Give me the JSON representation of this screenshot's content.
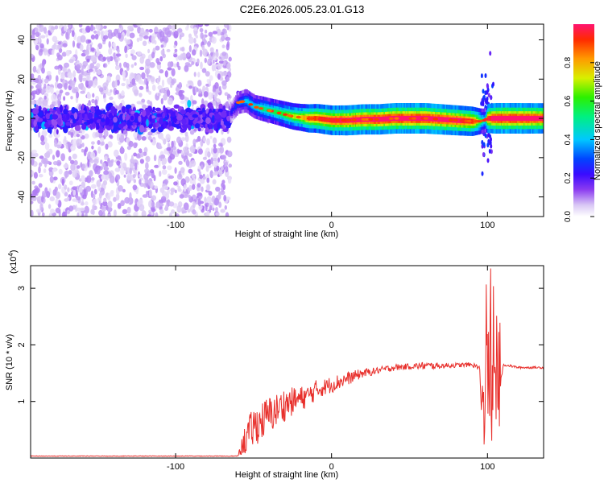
{
  "figure_title": "C2E6.2026.005.23.01.G13",
  "chart_data": [
    {
      "type": "heatmap",
      "name": "spectrogram",
      "xlabel": "Height of straight line (km)",
      "ylabel": "Frequency (Hz)",
      "xlim": [
        -193,
        136
      ],
      "ylim": [
        -50,
        48
      ],
      "xticks": [
        -100,
        0,
        100
      ],
      "yticks": [
        -40,
        -20,
        0,
        20,
        40
      ],
      "colorbar": {
        "label": "Normalized spectral amplitude",
        "range": [
          0,
          1
        ],
        "ticks": [
          "0.0",
          "0.2",
          "0.4",
          "0.6",
          "0.8"
        ],
        "tick_values": [
          0.0,
          0.2,
          0.4,
          0.6,
          0.8
        ]
      },
      "ridge": {
        "x": [
          -65,
          -60,
          -55,
          -50,
          -45,
          -40,
          -35,
          -30,
          -25,
          -20,
          -15,
          -10,
          -5,
          0,
          10,
          20,
          30,
          40,
          50,
          60,
          70,
          80,
          90,
          95,
          98,
          100,
          105,
          110,
          120,
          136
        ],
        "freq": [
          3,
          8,
          9,
          6,
          5,
          4,
          3,
          2,
          1,
          0.5,
          0,
          0,
          -0.5,
          -1,
          -1,
          -0.5,
          -0.5,
          0,
          0,
          0,
          -0.5,
          -1,
          -1.5,
          -1.5,
          -1,
          0,
          0,
          0,
          0,
          0
        ],
        "amplitude": [
          0.2,
          0.3,
          0.4,
          0.4,
          0.5,
          0.5,
          0.55,
          0.6,
          0.65,
          0.7,
          0.8,
          0.85,
          0.9,
          0.92,
          0.95,
          0.97,
          0.98,
          1.0,
          1.0,
          1.0,
          0.98,
          0.95,
          0.9,
          0.6,
          0.4,
          0.9,
          1.0,
          1.0,
          1.0,
          0.97
        ]
      },
      "noise_region": {
        "x_range": [
          -193,
          -65
        ],
        "freq_range": [
          -50,
          48
        ]
      }
    },
    {
      "type": "line",
      "name": "snr",
      "xlabel": "Height of straight line (km)",
      "ylabel": "SNR (10 * v/v)",
      "y_multiplier": "(x10",
      "y_multiplier_exp": "4",
      "xlim": [
        -193,
        136
      ],
      "ylim": [
        0,
        3.4
      ],
      "xticks": [
        -100,
        0,
        100
      ],
      "yticks": [
        1,
        2,
        3
      ],
      "series": [
        {
          "name": "SNR",
          "color": "#e8302c",
          "x": [
            -193,
            -60,
            -55,
            -50,
            -45,
            -40,
            -35,
            -30,
            -25,
            -20,
            -15,
            -10,
            -5,
            0,
            5,
            10,
            15,
            20,
            25,
            30,
            40,
            50,
            60,
            70,
            80,
            90,
            95,
            96,
            98,
            100,
            101,
            102,
            103,
            104,
            105,
            106,
            108,
            110,
            120,
            136
          ],
          "values": [
            0.02,
            0.05,
            0.35,
            0.55,
            0.65,
            0.75,
            0.85,
            0.95,
            1.0,
            1.05,
            1.1,
            1.2,
            1.25,
            1.3,
            1.35,
            1.4,
            1.45,
            1.5,
            1.52,
            1.55,
            1.6,
            1.62,
            1.63,
            1.63,
            1.64,
            1.65,
            1.6,
            0.7,
            1.2,
            2.9,
            0.05,
            3.3,
            0.2,
            2.4,
            0.6,
            2.0,
            1.2,
            1.65,
            1.6,
            1.6
          ],
          "noise_amplitude": [
            0.0,
            0.0,
            0.3,
            0.35,
            0.35,
            0.35,
            0.3,
            0.3,
            0.25,
            0.22,
            0.2,
            0.18,
            0.15,
            0.15,
            0.14,
            0.12,
            0.1,
            0.08,
            0.07,
            0.06,
            0.06,
            0.05,
            0.07,
            0.05,
            0.04,
            0.04,
            0.05,
            0.2,
            0.3,
            0.2,
            0.1,
            0.2,
            0.2,
            0.3,
            0.3,
            0.2,
            0.1,
            0.02,
            0.02,
            0.02
          ]
        }
      ]
    }
  ]
}
